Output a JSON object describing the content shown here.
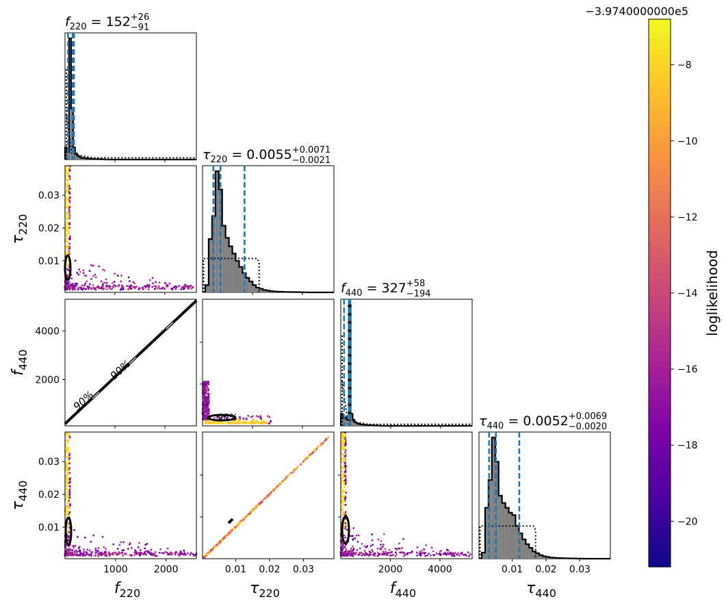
{
  "figure": {
    "type": "corner_plot",
    "parameters": [
      "f_220",
      "tau_220",
      "f_440",
      "tau_440"
    ],
    "colorbar_label": "loglikelihood",
    "colorbar_offset": "−3.9740000000e5",
    "colorbar_range": [
      -21.2,
      -6.8
    ],
    "colormap": "plasma",
    "contour_label": "90%"
  },
  "chart_data": [
    {
      "type": "histogram",
      "panel": "f220",
      "title_param": "f",
      "title_sub": "220",
      "title_value": " = 152",
      "title_plus": "+26",
      "title_minus": "−91",
      "xlim": [
        0,
        2600
      ],
      "quantiles": [
        60,
        152,
        178
      ],
      "bins_width": 40,
      "hist": [
        0.1,
        0.06,
        1.0,
        0.42,
        0.1,
        0.05,
        0.03,
        0.02,
        0.015,
        0.012,
        0.01,
        0.008,
        0.007,
        0.006,
        0.005,
        0.004,
        0.003,
        0.003,
        0.002,
        0.002
      ],
      "prior_level": 0.014
    },
    {
      "type": "scatter",
      "panel": "tau220_vs_f220",
      "xlim": [
        0,
        2600
      ],
      "ylim": [
        0.0004,
        0.039
      ],
      "ylabel": "τ",
      "ylabel_sub": "220",
      "yticks": [
        0.01,
        0.02,
        0.03
      ],
      "ytick_labels": [
        "0.01",
        "0.02",
        "0.03"
      ]
    },
    {
      "type": "histogram",
      "panel": "tau220",
      "title_param": "τ",
      "title_sub": "220",
      "title_value": " = 0.0055",
      "title_plus": "+0.0071",
      "title_minus": "−0.0021",
      "xlim": [
        0.0002,
        0.039
      ],
      "quantiles": [
        0.0034,
        0.0055,
        0.0126
      ],
      "bins_start": 0.001,
      "bins_width": 0.001,
      "hist": [
        0.06,
        0.44,
        0.63,
        1.0,
        0.85,
        0.55,
        0.45,
        0.38,
        0.32,
        0.26,
        0.21,
        0.16,
        0.12,
        0.09,
        0.06,
        0.04,
        0.03,
        0.02,
        0.015,
        0.01,
        0.008,
        0.006,
        0.005,
        0.004,
        0.003,
        0.003,
        0.002,
        0.002,
        0.001,
        0.001
      ],
      "prior_range": [
        0.0005,
        0.0163
      ],
      "prior_level": 0.28
    },
    {
      "type": "scatter",
      "panel": "f440_vs_f220",
      "xlim": [
        0,
        2600
      ],
      "ylim": [
        100,
        5300
      ],
      "ylabel": "f",
      "ylabel_sub": "440",
      "yticks": [
        2000,
        4000
      ],
      "ytick_labels": [
        "2000",
        "4000"
      ]
    },
    {
      "type": "scatter",
      "panel": "f440_vs_tau220",
      "xlim": [
        0.0002,
        0.039
      ],
      "ylim": [
        100,
        5300
      ]
    },
    {
      "type": "histogram",
      "panel": "f440",
      "title_param": "f",
      "title_sub": "440",
      "title_value": " = 327",
      "title_plus": "+58",
      "title_minus": "−194",
      "xlim": [
        0,
        5300
      ],
      "quantiles": [
        133,
        327,
        385
      ],
      "bins_width": 80,
      "hist": [
        0.1,
        0.06,
        0.07,
        0.05,
        1.0,
        0.1,
        0.05,
        0.03,
        0.02,
        0.015,
        0.012,
        0.01,
        0.008,
        0.007,
        0.006,
        0.005,
        0.004,
        0.003,
        0.003,
        0.002
      ],
      "prior_level": 0.013
    },
    {
      "type": "scatter",
      "panel": "tau440_vs_f220",
      "xlim": [
        0,
        2600
      ],
      "ylim": [
        0.0004,
        0.039
      ],
      "ylabel": "τ",
      "ylabel_sub": "440",
      "yticks": [
        0.01,
        0.02,
        0.03
      ],
      "ytick_labels": [
        "0.01",
        "0.02",
        "0.03"
      ],
      "xlabel": "f",
      "xlabel_sub": "220",
      "xticks": [
        1000,
        2000
      ],
      "xtick_labels": [
        "1000",
        "2000"
      ]
    },
    {
      "type": "scatter",
      "panel": "tau440_vs_tau220",
      "xlim": [
        0.0002,
        0.039
      ],
      "ylim": [
        0.0004,
        0.039
      ],
      "xlabel": "τ",
      "xlabel_sub": "220",
      "xticks": [
        0.01,
        0.02,
        0.03
      ],
      "xtick_labels": [
        "0.01",
        "0.02",
        "0.03"
      ]
    },
    {
      "type": "scatter",
      "panel": "tau440_vs_f440",
      "xlim": [
        0,
        5300
      ],
      "ylim": [
        0.0004,
        0.039
      ],
      "xlabel": "f",
      "xlabel_sub": "440",
      "xticks": [
        2000,
        4000
      ],
      "xtick_labels": [
        "2000",
        "4000"
      ]
    },
    {
      "type": "histogram",
      "panel": "tau440",
      "title_param": "τ",
      "title_sub": "440",
      "title_value": " = 0.0052",
      "title_plus": "+0.0069",
      "title_minus": "−0.0020",
      "xlim": [
        0.0002,
        0.039
      ],
      "quantiles": [
        0.0032,
        0.0052,
        0.0121
      ],
      "bins_start": 0.001,
      "bins_width": 0.001,
      "hist": [
        0.05,
        0.42,
        0.65,
        1.0,
        0.8,
        0.52,
        0.46,
        0.42,
        0.38,
        0.36,
        0.27,
        0.21,
        0.16,
        0.12,
        0.09,
        0.06,
        0.045,
        0.03,
        0.02,
        0.015,
        0.01,
        0.008,
        0.006,
        0.005,
        0.004,
        0.003,
        0.002,
        0.002,
        0.001,
        0.001
      ],
      "xlabel": "τ",
      "xlabel_sub": "440",
      "xticks": [
        0.01,
        0.02,
        0.03
      ],
      "xtick_labels": [
        "0.01",
        "0.02",
        "0.03"
      ],
      "prior_range": [
        0.0005,
        0.0163
      ],
      "prior_level": 0.27
    },
    {
      "type": "colorbar",
      "ticks": [
        -8,
        -10,
        -12,
        -14,
        -16,
        -18,
        -20
      ],
      "tick_labels": [
        "−8",
        "−10",
        "−12",
        "−14",
        "−16",
        "−18",
        "−20"
      ]
    }
  ]
}
